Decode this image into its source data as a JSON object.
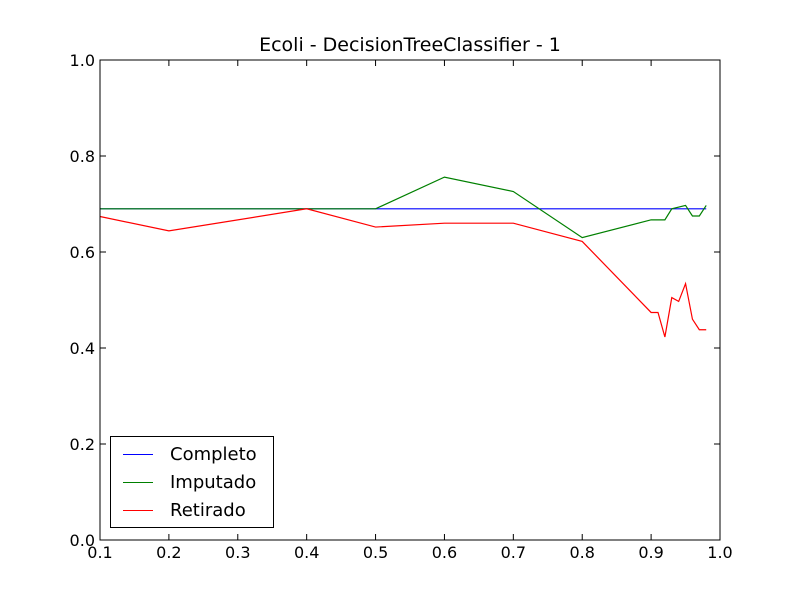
{
  "chart_data": {
    "type": "line",
    "title": "Ecoli - DecisionTreeClassifier - 1",
    "xlabel": "",
    "ylabel": "",
    "xlim": [
      0.1,
      1.0
    ],
    "ylim": [
      0.0,
      1.0
    ],
    "xticks": [
      "0.1",
      "0.2",
      "0.3",
      "0.4",
      "0.5",
      "0.6",
      "0.7",
      "0.8",
      "0.9",
      "1.0"
    ],
    "yticks": [
      "0.0",
      "0.2",
      "0.4",
      "0.6",
      "0.8",
      "1.0"
    ],
    "grid": false,
    "legend_position": "lower-left",
    "series": [
      {
        "name": "Completo",
        "color": "#0000ff",
        "x": [
          0.1,
          0.98
        ],
        "y": [
          0.69,
          0.69
        ]
      },
      {
        "name": "Imputado",
        "color": "#008000",
        "x": [
          0.1,
          0.2,
          0.3,
          0.4,
          0.5,
          0.6,
          0.7,
          0.8,
          0.9,
          0.92,
          0.93,
          0.95,
          0.96,
          0.97,
          0.98
        ],
        "y": [
          0.69,
          0.69,
          0.69,
          0.69,
          0.69,
          0.756,
          0.726,
          0.63,
          0.667,
          0.667,
          0.69,
          0.697,
          0.675,
          0.675,
          0.697
        ]
      },
      {
        "name": "Retirado",
        "color": "#ff0000",
        "x": [
          0.1,
          0.2,
          0.4,
          0.5,
          0.6,
          0.7,
          0.8,
          0.9,
          0.91,
          0.92,
          0.93,
          0.94,
          0.95,
          0.96,
          0.97,
          0.98
        ],
        "y": [
          0.674,
          0.644,
          0.69,
          0.652,
          0.66,
          0.66,
          0.622,
          0.474,
          0.474,
          0.423,
          0.505,
          0.497,
          0.534,
          0.46,
          0.438,
          0.438
        ]
      }
    ]
  }
}
